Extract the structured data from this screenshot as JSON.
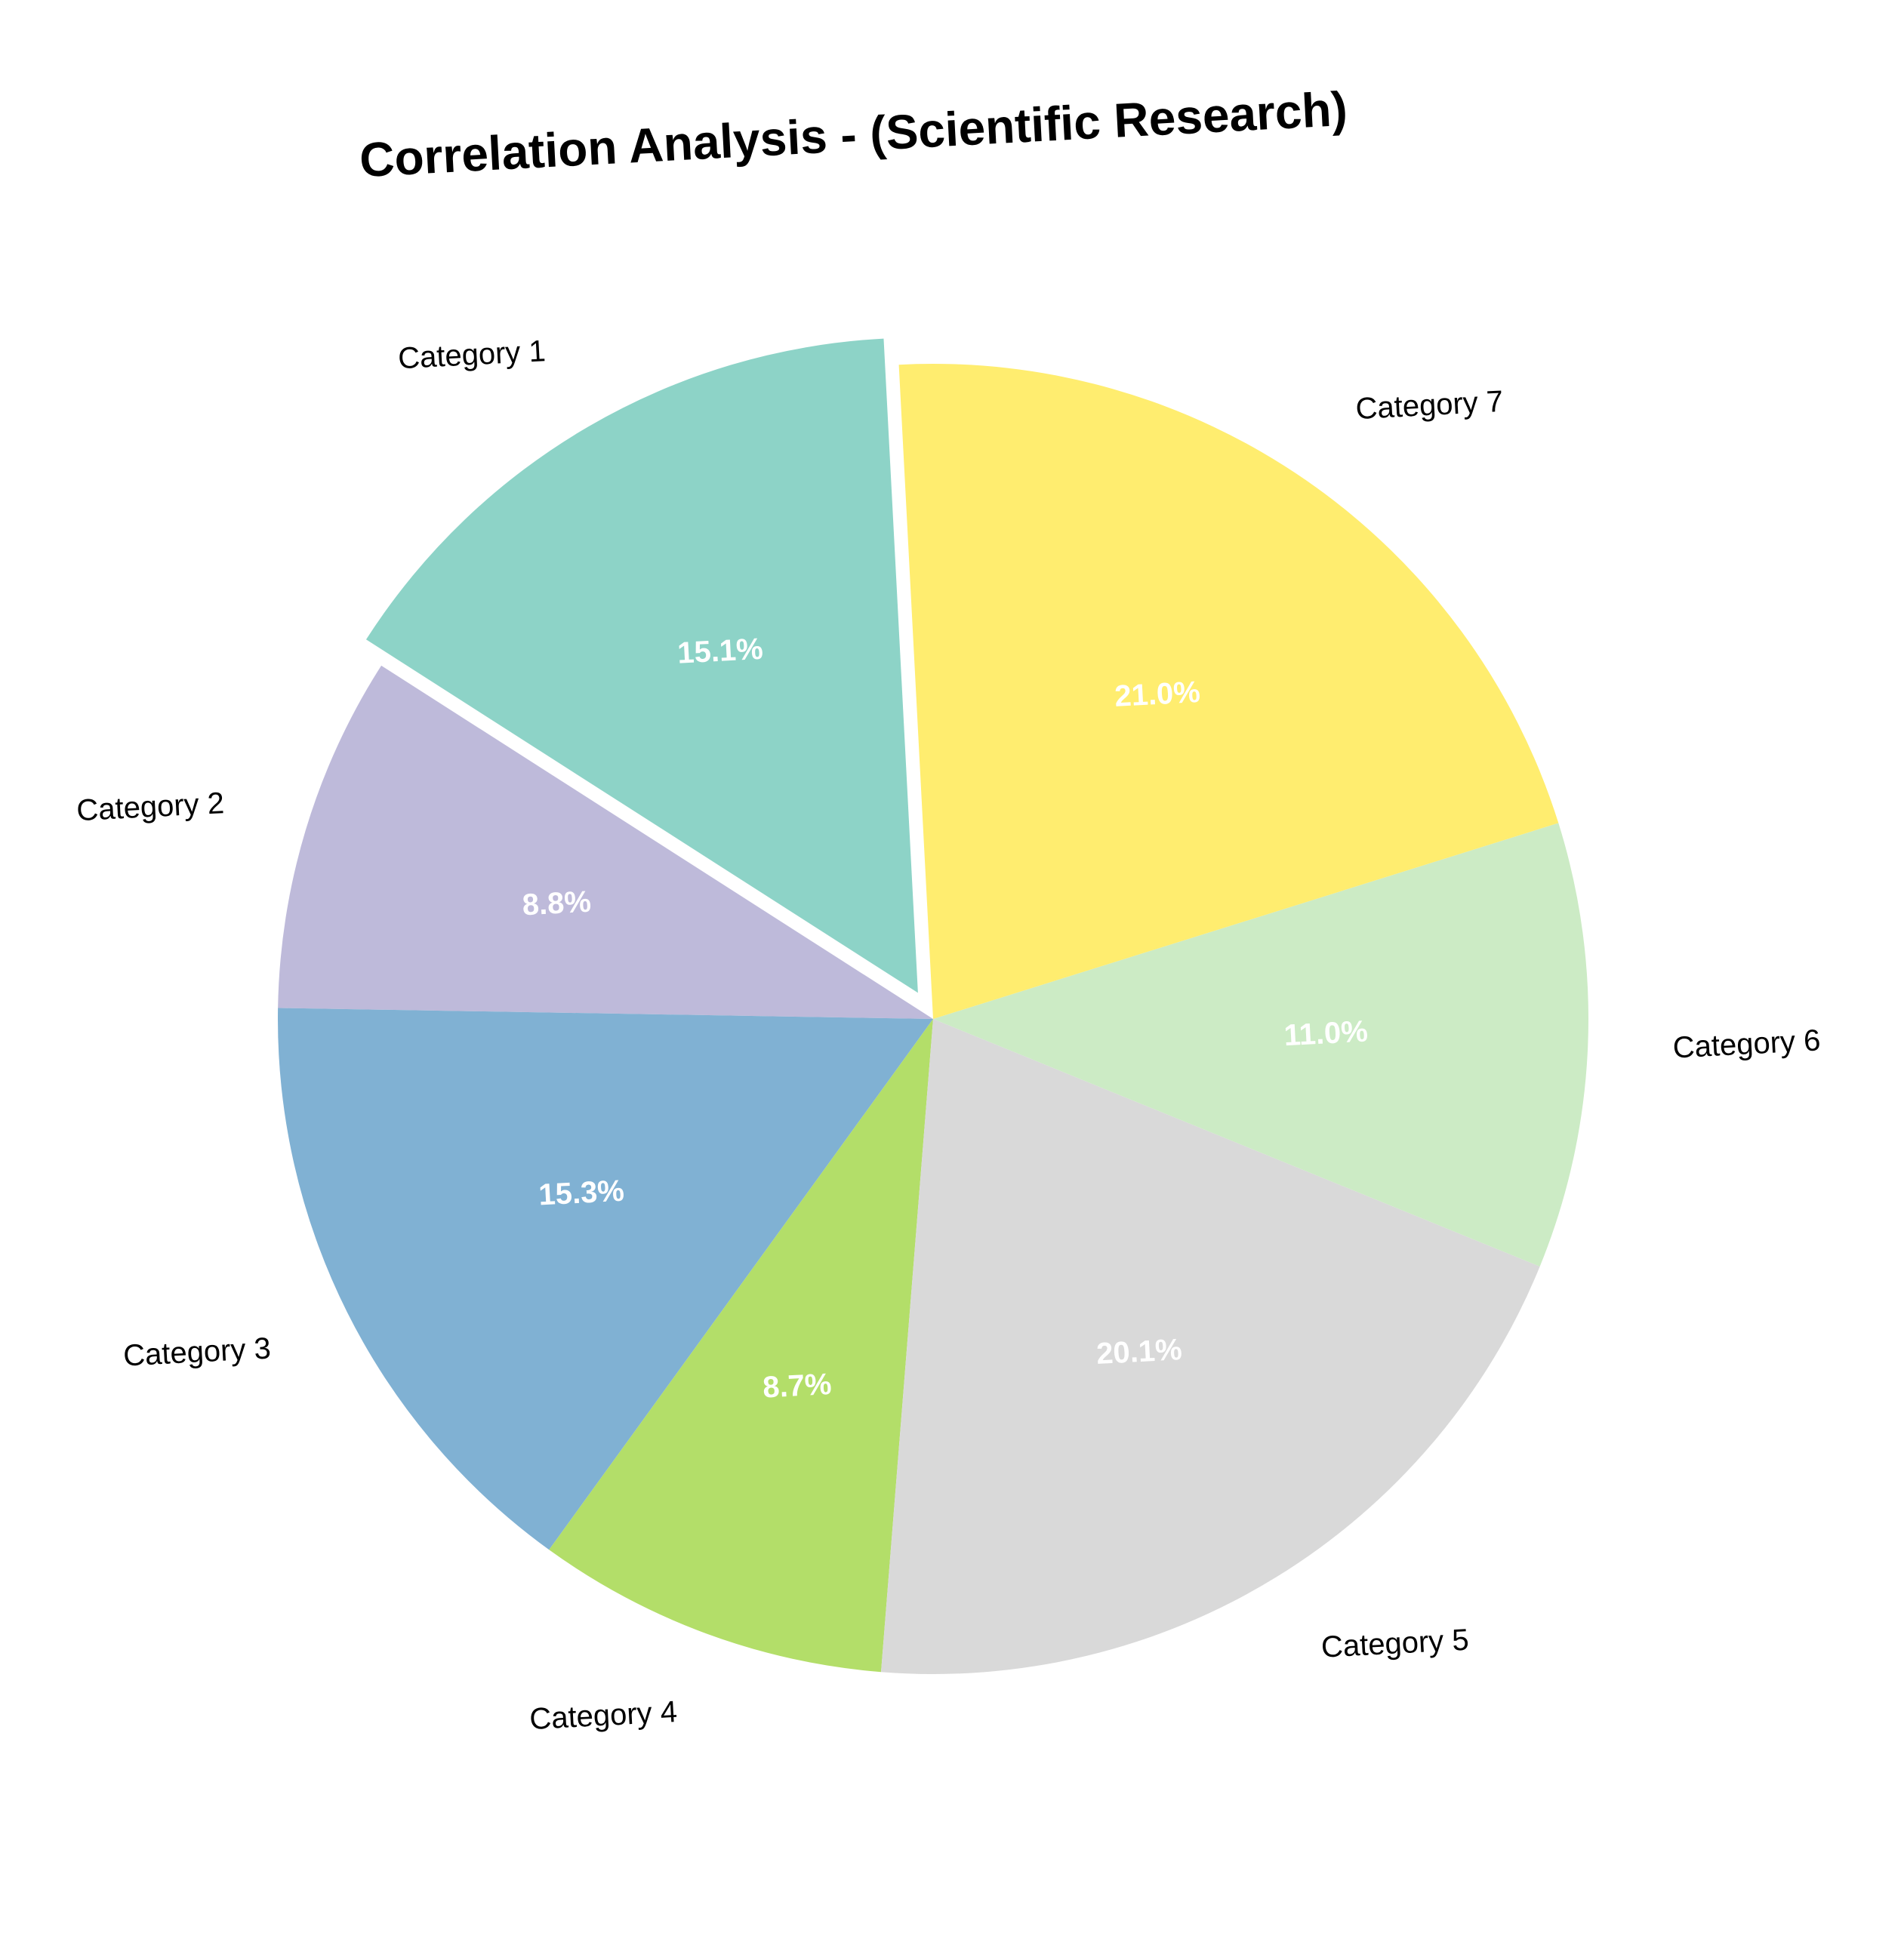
{
  "chart_data": {
    "type": "pie",
    "title": "Correlation Analysis - (Scientific Research)",
    "categories": [
      "Category 1",
      "Category 2",
      "Category 3",
      "Category 4",
      "Category 5",
      "Category 6",
      "Category 7"
    ],
    "values": [
      15.1,
      8.8,
      15.3,
      8.7,
      20.1,
      11.0,
      21.0
    ],
    "percent_labels": [
      "15.1%",
      "8.8%",
      "15.3%",
      "8.7%",
      "20.1%",
      "11.0%",
      "21.0%"
    ],
    "colors": [
      "#8dd3c7",
      "#bebada",
      "#80b1d3",
      "#b3de69",
      "#d9d9d9",
      "#ccebc5",
      "#ffed6f"
    ],
    "exploded": [
      "Category 1"
    ],
    "start_angle_deg": 93,
    "direction": "counterclockwise",
    "legend": "none"
  }
}
